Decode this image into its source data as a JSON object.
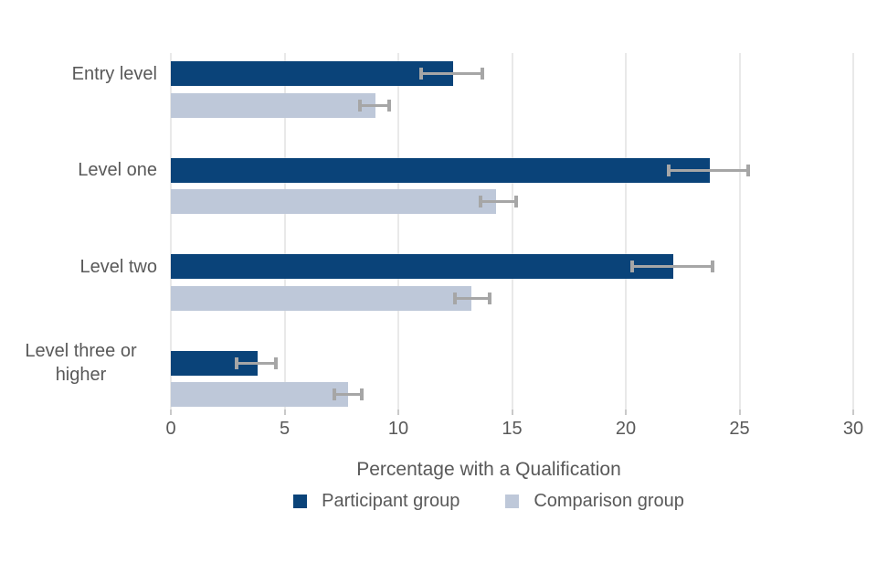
{
  "chart_data": {
    "type": "bar",
    "orientation": "horizontal",
    "xlabel": "Percentage with a Qualification",
    "categories": [
      "Entry level",
      "Level one",
      "Level two",
      "Level three or higher"
    ],
    "series": [
      {
        "name": "Participant group",
        "color": "#0a4379",
        "values": [
          12.4,
          23.7,
          22.1,
          3.8
        ],
        "error_low": [
          11.0,
          21.9,
          20.3,
          2.9
        ],
        "error_high": [
          13.7,
          25.4,
          23.8,
          4.6
        ]
      },
      {
        "name": "Comparison group",
        "color": "#bec8d9",
        "values": [
          9.0,
          14.3,
          13.2,
          7.8
        ],
        "error_low": [
          8.3,
          13.6,
          12.5,
          7.2
        ],
        "error_high": [
          9.6,
          15.2,
          14.0,
          8.4
        ]
      }
    ],
    "xlim": [
      0,
      30
    ],
    "xticks": [
      "0",
      "5",
      "10",
      "15",
      "20",
      "25",
      "30"
    ],
    "grid": "vertical",
    "legend_position": "bottom",
    "colors": {
      "text": "#595959",
      "gridline": "#e9e9e9",
      "tick": "#c9c9c9",
      "error_bar": "#a6a6a6",
      "background": "#ffffff"
    }
  }
}
